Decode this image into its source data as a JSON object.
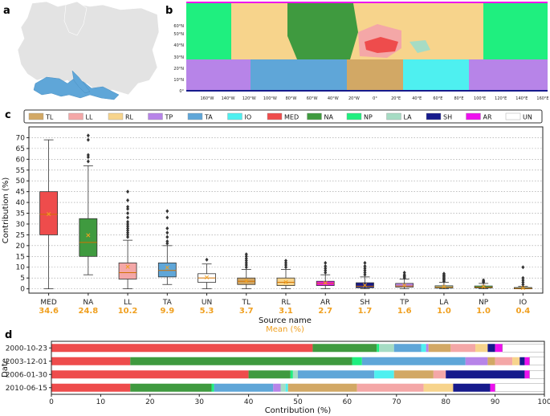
{
  "panels": {
    "a": "a",
    "b": "b",
    "c": "c",
    "d": "d"
  },
  "map_b": {
    "lon_ticks": [
      "160°W",
      "140°W",
      "120°W",
      "100°W",
      "80°W",
      "60°W",
      "40°W",
      "20°W",
      "0°",
      "20°E",
      "40°E",
      "60°E",
      "80°E",
      "100°E",
      "120°E",
      "140°E",
      "160°E"
    ],
    "lat_ticks": [
      "60°N",
      "50°N",
      "40°N",
      "30°N",
      "20°N",
      "10°N",
      "0°"
    ]
  },
  "legend": [
    {
      "code": "TL",
      "color": "#d2a865"
    },
    {
      "code": "LL",
      "color": "#f4a7a7"
    },
    {
      "code": "RL",
      "color": "#f7d48c"
    },
    {
      "code": "TP",
      "color": "#b784e8"
    },
    {
      "code": "TA",
      "color": "#5fa6d8"
    },
    {
      "code": "IO",
      "color": "#4ef0f0"
    },
    {
      "code": "MED",
      "color": "#ee4c4c"
    },
    {
      "code": "NA",
      "color": "#3f9a3f"
    },
    {
      "code": "NP",
      "color": "#1fef7f"
    },
    {
      "code": "LA",
      "color": "#a6dcc4"
    },
    {
      "code": "SH",
      "color": "#161a8c"
    },
    {
      "code": "AR",
      "color": "#ee10ee"
    },
    {
      "code": "UN",
      "color": "#ffffff"
    }
  ],
  "chart_data": [
    {
      "type": "boxplot",
      "panel": "c",
      "ylabel": "Contribution (%)",
      "xlabel": "Source name",
      "xlabel2": "Mean (%)",
      "ylim": [
        -2,
        75
      ],
      "yticks": [
        0,
        5,
        10,
        15,
        20,
        25,
        30,
        35,
        40,
        45,
        50,
        55,
        60,
        65,
        70
      ],
      "grid": "horizontal dotted",
      "boxes": [
        {
          "name": "MED",
          "color": "#ee4c4c",
          "whislo": 0,
          "q1": 25,
          "med": 34.5,
          "q3": 45,
          "whishi": 69,
          "mean": 34.6,
          "mean_label": "34.6",
          "fliers": []
        },
        {
          "name": "NA",
          "color": "#3f9a3f",
          "whislo": 6.5,
          "q1": 15,
          "med": 21.5,
          "q3": 32.5,
          "whishi": 57,
          "mean": 24.8,
          "mean_label": "24.8",
          "fliers": [
            59,
            61,
            62,
            69,
            71
          ]
        },
        {
          "name": "LL",
          "color": "#f4a7a7",
          "whislo": 0,
          "q1": 4.5,
          "med": 7.5,
          "q3": 12,
          "whishi": 22.5,
          "mean": 10.2,
          "mean_label": "10.2",
          "fliers": [
            24,
            25,
            26,
            27,
            28,
            29,
            30,
            31,
            33,
            35,
            37,
            38,
            41,
            45
          ]
        },
        {
          "name": "TA",
          "color": "#5fa6d8",
          "whislo": 2,
          "q1": 5.5,
          "med": 8.5,
          "q3": 12,
          "whishi": 20,
          "mean": 9.9,
          "mean_label": "9.9",
          "fliers": [
            21,
            22,
            24,
            26,
            28,
            33,
            36
          ]
        },
        {
          "name": "UN",
          "color": "#ffffff",
          "whislo": 0,
          "q1": 3,
          "med": 5,
          "q3": 7,
          "whishi": 11.5,
          "mean": 5.3,
          "mean_label": "5.3",
          "fliers": [
            13.5
          ]
        },
        {
          "name": "TL",
          "color": "#d2a865",
          "whislo": 0,
          "q1": 2,
          "med": 3.5,
          "q3": 5,
          "whishi": 9,
          "mean": 3.7,
          "mean_label": "3.7",
          "fliers": [
            10,
            11,
            12,
            13,
            14,
            15,
            16
          ]
        },
        {
          "name": "RL",
          "color": "#f7d48c",
          "whislo": 0,
          "q1": 1.5,
          "med": 3,
          "q3": 5,
          "whishi": 9,
          "mean": 3.1,
          "mean_label": "3.1",
          "fliers": [
            10,
            11,
            12,
            13
          ]
        },
        {
          "name": "AR",
          "color": "#ee10ee",
          "whislo": 0,
          "q1": 1.5,
          "med": 2.5,
          "q3": 3.5,
          "whishi": 6.5,
          "mean": 2.7,
          "mean_label": "2.7",
          "fliers": [
            7.5,
            8.5,
            9.5,
            10.5,
            12
          ]
        },
        {
          "name": "SH",
          "color": "#161a8c",
          "whislo": 0,
          "q1": 0.5,
          "med": 1.2,
          "q3": 2.8,
          "whishi": 5.5,
          "mean": 1.7,
          "mean_label": "1.7",
          "fliers": [
            6.5,
            7.5,
            8.5,
            9.5,
            10.5,
            12
          ]
        },
        {
          "name": "TP",
          "color": "#b784e8",
          "whislo": 0,
          "q1": 0.8,
          "med": 1.3,
          "q3": 2.5,
          "whishi": 4.5,
          "mean": 1.6,
          "mean_label": "1.6",
          "fliers": [
            5,
            5.5,
            6,
            6.5,
            7.5
          ]
        },
        {
          "name": "LA",
          "color": "#a6dcc4",
          "whislo": 0,
          "q1": 0.3,
          "med": 0.8,
          "q3": 1.4,
          "whishi": 3,
          "mean": 1.0,
          "mean_label": "1.0",
          "fliers": [
            3.5,
            4,
            4.5,
            5,
            5.5,
            6,
            6.5,
            7
          ]
        },
        {
          "name": "NP",
          "color": "#1fef7f",
          "whislo": 0,
          "q1": 0.4,
          "med": 0.8,
          "q3": 1.3,
          "whishi": 2.5,
          "mean": 1.0,
          "mean_label": "1.0",
          "fliers": [
            3,
            3.5,
            4
          ]
        },
        {
          "name": "IO",
          "color": "#4ef0f0",
          "whislo": 0,
          "q1": 0,
          "med": 0.2,
          "q3": 0.6,
          "whishi": 1.2,
          "mean": 0.4,
          "mean_label": "0.4",
          "fliers": [
            2,
            3,
            4,
            5,
            10
          ]
        }
      ]
    },
    {
      "type": "stacked-bar-horizontal",
      "panel": "d",
      "ylabel": "Date",
      "xlabel": "Contribution (%)",
      "xlim": [
        0,
        100
      ],
      "xticks": [
        0,
        10,
        20,
        30,
        40,
        50,
        60,
        70,
        80,
        90,
        100
      ],
      "categories": [
        "2000-10-23",
        "2003-12-01",
        "2006-01-30",
        "2010-06-15"
      ],
      "segments": [
        [
          {
            "code": "MED",
            "value": 53
          },
          {
            "code": "NA",
            "value": 13
          },
          {
            "code": "NP",
            "value": 0.5
          },
          {
            "code": "LA",
            "value": 3
          },
          {
            "code": "TA",
            "value": 5.5
          },
          {
            "code": "IO",
            "value": 1
          },
          {
            "code": "TP",
            "value": 0.5
          },
          {
            "code": "TL",
            "value": 4.5
          },
          {
            "code": "LL",
            "value": 5
          },
          {
            "code": "RL",
            "value": 2.5
          },
          {
            "code": "SH",
            "value": 1.5
          },
          {
            "code": "AR",
            "value": 1.5
          },
          {
            "code": "UN",
            "value": 8.5
          }
        ],
        [
          {
            "code": "MED",
            "value": 16
          },
          {
            "code": "NA",
            "value": 45
          },
          {
            "code": "NP",
            "value": 2
          },
          {
            "code": "TA",
            "value": 21
          },
          {
            "code": "TP",
            "value": 4.5
          },
          {
            "code": "TL",
            "value": 1.5
          },
          {
            "code": "LL",
            "value": 3.5
          },
          {
            "code": "RL",
            "value": 1.5
          },
          {
            "code": "SH",
            "value": 1
          },
          {
            "code": "AR",
            "value": 1
          },
          {
            "code": "UN",
            "value": 3
          }
        ],
        [
          {
            "code": "MED",
            "value": 40
          },
          {
            "code": "NA",
            "value": 8.5
          },
          {
            "code": "NP",
            "value": 0.5
          },
          {
            "code": "LA",
            "value": 1
          },
          {
            "code": "TA",
            "value": 15.5
          },
          {
            "code": "IO",
            "value": 4
          },
          {
            "code": "TL",
            "value": 8
          },
          {
            "code": "LL",
            "value": 2.5
          },
          {
            "code": "SH",
            "value": 16
          },
          {
            "code": "AR",
            "value": 1
          },
          {
            "code": "UN",
            "value": 3
          }
        ],
        [
          {
            "code": "MED",
            "value": 16
          },
          {
            "code": "NA",
            "value": 16.5
          },
          {
            "code": "NP",
            "value": 0.5
          },
          {
            "code": "TA",
            "value": 12
          },
          {
            "code": "TP",
            "value": 1.5
          },
          {
            "code": "LA",
            "value": 1
          },
          {
            "code": "IO",
            "value": 0.5
          },
          {
            "code": "TL",
            "value": 14
          },
          {
            "code": "LL",
            "value": 13.5
          },
          {
            "code": "RL",
            "value": 6
          },
          {
            "code": "SH",
            "value": 7.5
          },
          {
            "code": "AR",
            "value": 1
          },
          {
            "code": "UN",
            "value": 10
          }
        ]
      ]
    }
  ]
}
